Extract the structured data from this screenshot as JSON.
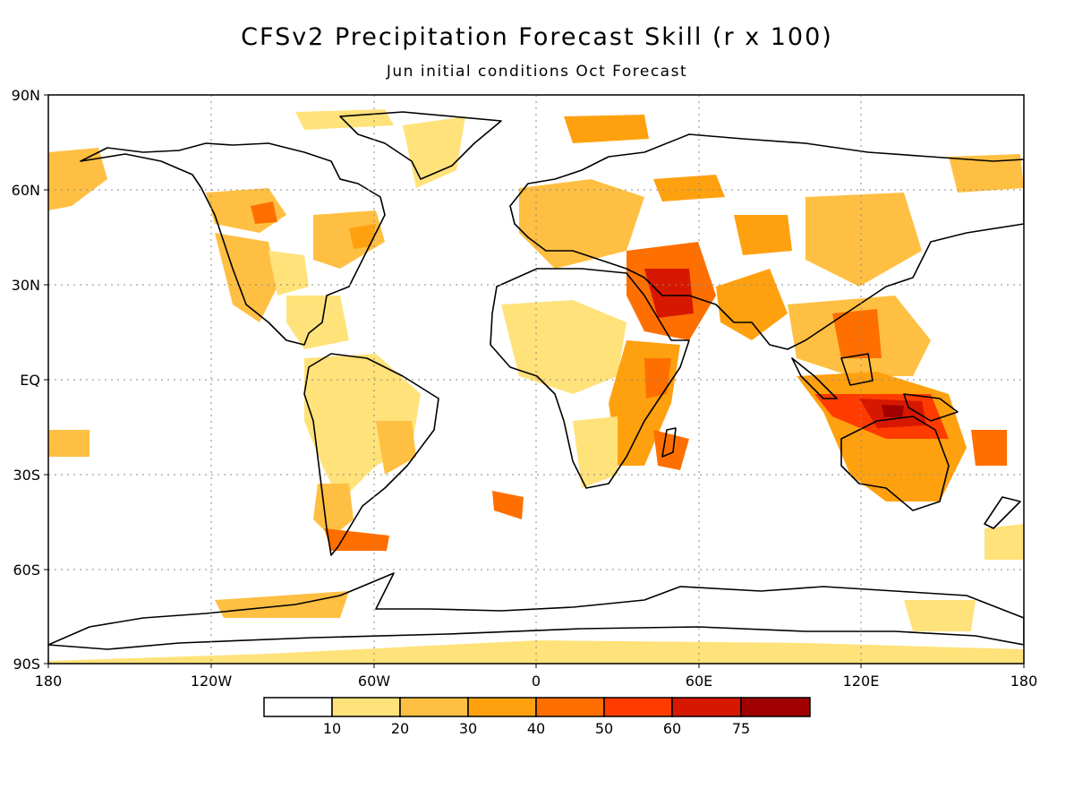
{
  "title": "CFSv2 Precipitation Forecast Skill (r x 100)",
  "subtitle": "Jun initial conditions  Oct Forecast",
  "axes": {
    "lat_ticks": [
      "90N",
      "60N",
      "30N",
      "EQ",
      "30S",
      "60S",
      "90S"
    ],
    "lon_ticks": [
      "180",
      "120W",
      "60W",
      "0",
      "60E",
      "120E",
      "180"
    ]
  },
  "colorbar": {
    "labels": [
      "10",
      "20",
      "30",
      "40",
      "50",
      "60",
      "75"
    ],
    "colors": [
      "#ffffff",
      "#ffe27a",
      "#ffbf42",
      "#ffa10f",
      "#ff6f00",
      "#ff3b00",
      "#d61800",
      "#a00000"
    ]
  },
  "colors": {
    "coastline": "#000000",
    "gridline": "#8a8a8a"
  }
}
